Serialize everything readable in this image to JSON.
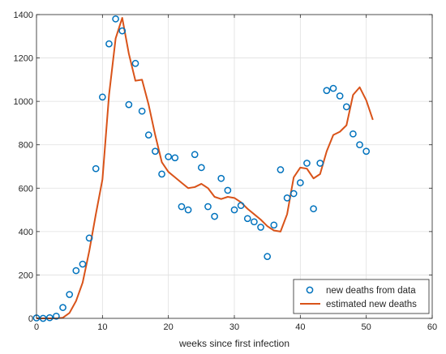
{
  "chart_data": {
    "type": "scatter+line",
    "xlabel": "weeks since first infection",
    "ylabel": "",
    "xlim": [
      0,
      60
    ],
    "ylim": [
      0,
      1400
    ],
    "xticks": [
      0,
      10,
      20,
      30,
      40,
      50,
      60
    ],
    "yticks": [
      0,
      200,
      400,
      600,
      800,
      1000,
      1200,
      1400
    ],
    "grid": true,
    "legend_position": "bottom-right",
    "series": [
      {
        "name": "new deaths from data",
        "kind": "markers",
        "color": "#0072bd",
        "x": [
          0,
          1,
          2,
          3,
          4,
          5,
          6,
          7,
          8,
          9,
          10,
          11,
          12,
          13,
          14,
          15,
          16,
          17,
          18,
          19,
          20,
          21,
          22,
          23,
          24,
          25,
          26,
          27,
          28,
          29,
          30,
          31,
          32,
          33,
          34,
          35,
          36,
          37,
          38,
          39,
          40,
          41,
          42,
          43,
          44,
          45,
          46,
          47,
          48,
          49,
          50
        ],
        "y": [
          2,
          0,
          3,
          10,
          50,
          110,
          220,
          250,
          370,
          690,
          1020,
          1265,
          1380,
          1325,
          985,
          1175,
          955,
          845,
          770,
          665,
          745,
          740,
          515,
          500,
          755,
          695,
          515,
          470,
          645,
          590,
          500,
          520,
          460,
          445,
          420,
          285,
          430,
          685,
          555,
          575,
          625,
          715,
          505,
          715,
          1050,
          1060,
          1025,
          975,
          850,
          800,
          770
        ]
      },
      {
        "name": "estimated new deaths",
        "kind": "line",
        "color": "#d95319",
        "x": [
          0,
          1,
          2,
          3,
          4,
          5,
          6,
          7,
          8,
          9,
          10,
          11,
          12,
          13,
          14,
          15,
          16,
          17,
          18,
          19,
          20,
          21,
          22,
          23,
          24,
          25,
          26,
          27,
          28,
          29,
          30,
          31,
          32,
          33,
          34,
          35,
          36,
          37,
          38,
          39,
          40,
          41,
          42,
          43,
          44,
          45,
          46,
          47,
          48,
          49,
          50,
          51
        ],
        "y": [
          0,
          0,
          0,
          0,
          3,
          25,
          80,
          165,
          310,
          480,
          640,
          1030,
          1290,
          1385,
          1220,
          1095,
          1100,
          985,
          845,
          720,
          675,
          650,
          625,
          600,
          605,
          620,
          600,
          560,
          550,
          560,
          555,
          535,
          505,
          480,
          455,
          425,
          405,
          400,
          480,
          650,
          695,
          690,
          645,
          665,
          770,
          845,
          860,
          890,
          1030,
          1065,
          1005,
          915
        ]
      }
    ]
  }
}
